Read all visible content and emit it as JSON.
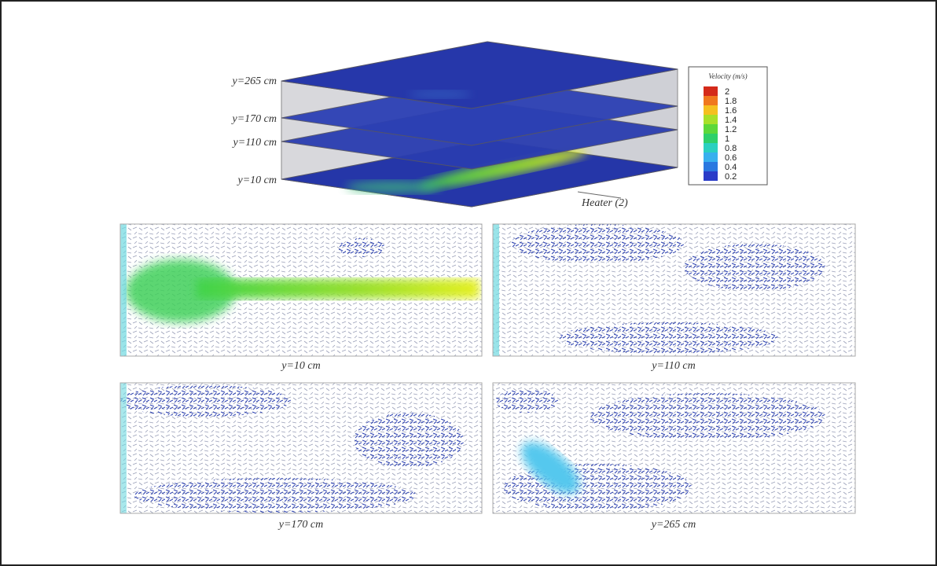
{
  "figure": {
    "slice_labels": [
      "y=265 cm",
      "y=170 cm",
      "y=110 cm",
      "y=10 cm"
    ],
    "legend": {
      "title": "Velocity (m/s)",
      "levels": [
        "2",
        "1.8",
        "1.6",
        "1.4",
        "1.2",
        "1",
        "0.8",
        "0.6",
        "0.4",
        "0.2"
      ]
    },
    "heater_label": "Heater (2)",
    "panels": [
      {
        "caption": "y=10 cm"
      },
      {
        "caption": "y=110 cm"
      },
      {
        "caption": "y=170 cm"
      },
      {
        "caption": "y=265 cm"
      }
    ]
  }
}
